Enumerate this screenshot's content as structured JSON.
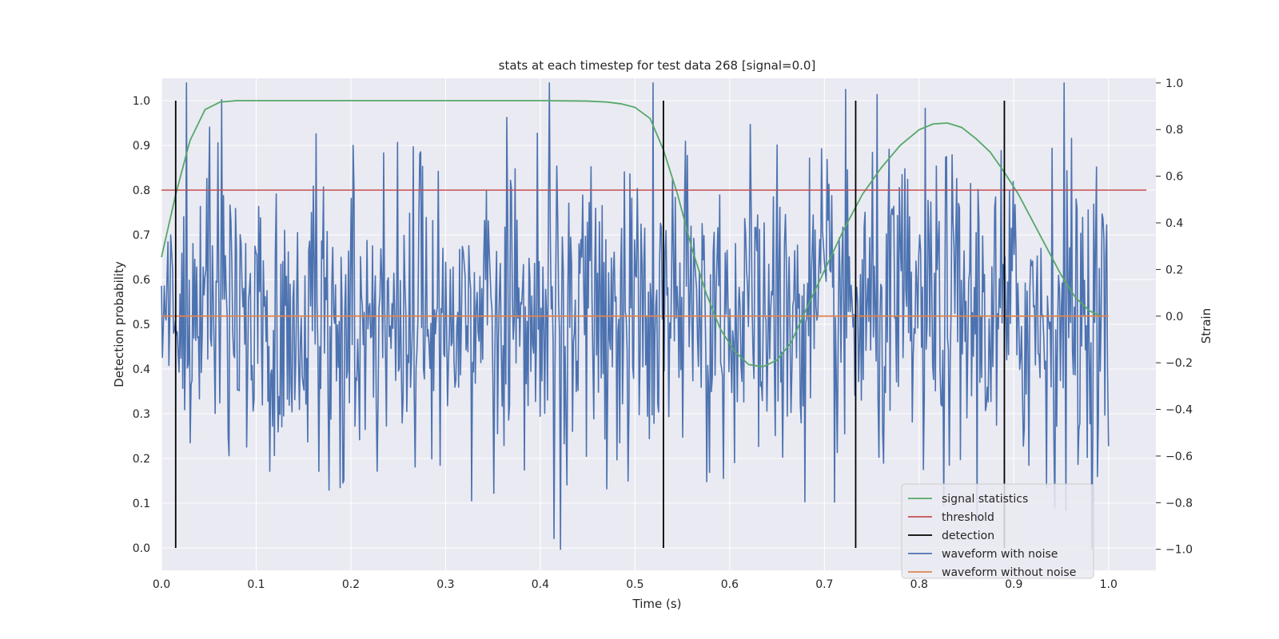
{
  "chart_data": {
    "type": "line",
    "title": "stats at each timestep for test data 268 [signal=0.0]",
    "xlabel": "Time (s)",
    "ylabel_left": "Detection probability",
    "ylabel_right": "Strain",
    "xlim": [
      0.0,
      1.05
    ],
    "ylim_left": [
      -0.05,
      1.05
    ],
    "ylim_right": [
      -1.09,
      1.02
    ],
    "x_ticks": [
      "0.0",
      "0.1",
      "0.2",
      "0.3",
      "0.4",
      "0.5",
      "0.6",
      "0.7",
      "0.8",
      "0.9",
      "1.0"
    ],
    "y_left_ticks": [
      "0.0",
      "0.1",
      "0.2",
      "0.3",
      "0.4",
      "0.5",
      "0.6",
      "0.7",
      "0.8",
      "0.9",
      "1.0"
    ],
    "y_right_ticks": [
      "−1.0",
      "−0.8",
      "−0.6",
      "−0.4",
      "−0.2",
      "0.0",
      "0.2",
      "0.4",
      "0.6",
      "0.8",
      "1.0"
    ],
    "grid": true,
    "legend_position": "bottom-right",
    "colors": {
      "signal_statistics": "#55a868",
      "threshold": "#c44e52",
      "detection": "#000000",
      "waveform_with_noise": "#4c72b0",
      "waveform_without_noise": "#dd8452",
      "background": "#eaeaf2",
      "grid": "#ffffff"
    },
    "series": [
      {
        "name": "signal statistics",
        "axis": "left",
        "x": [
          0.0,
          0.015,
          0.03,
          0.046,
          0.062,
          0.08,
          0.1,
          0.2,
          0.3,
          0.4,
          0.45,
          0.47,
          0.485,
          0.5,
          0.516,
          0.53,
          0.545,
          0.56,
          0.575,
          0.59,
          0.605,
          0.62,
          0.635,
          0.65,
          0.665,
          0.68,
          0.7,
          0.72,
          0.74,
          0.76,
          0.78,
          0.8,
          0.815,
          0.83,
          0.845,
          0.86,
          0.875,
          0.89,
          0.905,
          0.92,
          0.935,
          0.95,
          0.965,
          0.98,
          0.99
        ],
        "values": [
          0.65,
          0.79,
          0.91,
          0.98,
          0.997,
          1.0,
          1.0,
          1.0,
          1.0,
          1.0,
          0.999,
          0.997,
          0.993,
          0.985,
          0.96,
          0.89,
          0.79,
          0.67,
          0.57,
          0.49,
          0.44,
          0.41,
          0.405,
          0.42,
          0.46,
          0.53,
          0.62,
          0.71,
          0.79,
          0.85,
          0.9,
          0.935,
          0.948,
          0.95,
          0.94,
          0.915,
          0.885,
          0.84,
          0.79,
          0.73,
          0.67,
          0.61,
          0.56,
          0.53,
          0.52
        ]
      },
      {
        "name": "threshold",
        "axis": "left",
        "x": [
          0.0,
          1.04
        ],
        "values": [
          0.8,
          0.8
        ]
      },
      {
        "name": "detection",
        "axis": "left",
        "x_positions": [
          0.015,
          0.53,
          0.733,
          0.89
        ],
        "y_range": [
          0.0,
          1.0
        ]
      },
      {
        "name": "waveform with noise",
        "axis": "right",
        "samples": 1024,
        "x_range": [
          0.0,
          1.0
        ],
        "amplitude_range": [
          -1.0,
          1.0
        ],
        "note_visible_extremes": {
          "max": 1.0,
          "min": -1.0
        }
      },
      {
        "name": "waveform without noise",
        "axis": "right",
        "x": [
          0.0,
          1.0
        ],
        "values": [
          0.0,
          0.0
        ]
      }
    ],
    "legend": [
      "signal statistics",
      "threshold",
      "detection",
      "waveform with noise",
      "waveform without noise"
    ]
  }
}
